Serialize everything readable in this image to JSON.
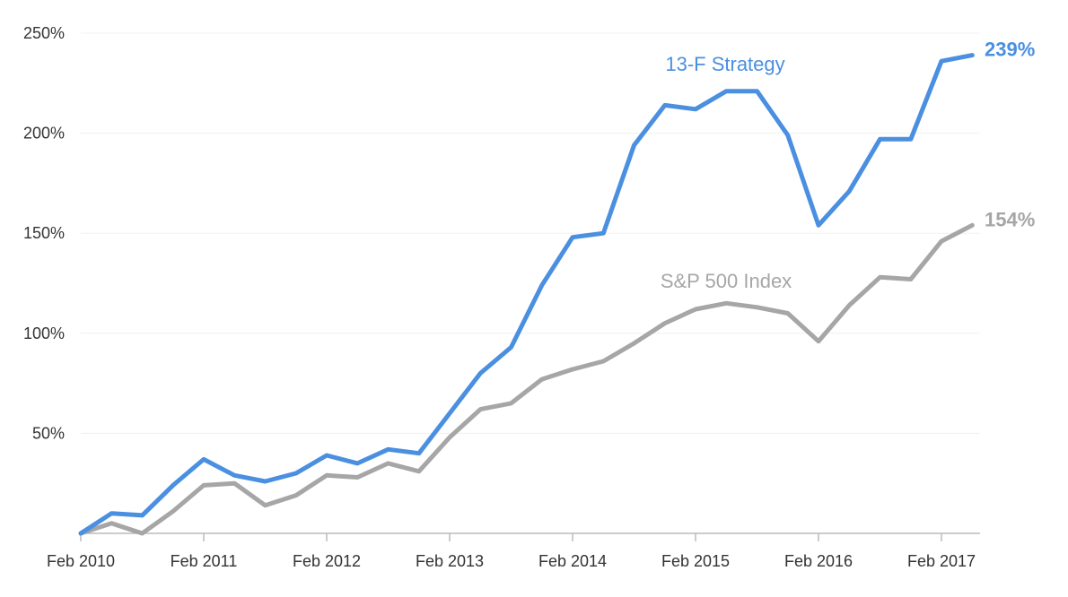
{
  "chart_data": {
    "type": "line",
    "title": "",
    "xlabel": "",
    "ylabel": "",
    "x_tick_labels": [
      "Feb 2010",
      "Feb 2011",
      "Feb 2012",
      "Feb 2013",
      "Feb 2014",
      "Feb 2015",
      "Feb 2016",
      "Feb 2017"
    ],
    "y_tick_labels": [
      "50%",
      "100%",
      "150%",
      "200%",
      "250%"
    ],
    "y_ticks": [
      50,
      100,
      150,
      200,
      250
    ],
    "ylim": [
      0,
      250
    ],
    "xlim_periods": [
      0,
      29.25
    ],
    "grid": "horizontal",
    "colors": {
      "strategy": "#4a8fe0",
      "index": "#a6a6a6",
      "grid": "#f0f0f0",
      "axis": "#bbbbbb"
    },
    "x_period": "quarter",
    "series": [
      {
        "name": "13-F Strategy",
        "end_label": "239%",
        "values": [
          0,
          10,
          9,
          24,
          37,
          29,
          26,
          30,
          39,
          35,
          42,
          40,
          60,
          80,
          93,
          124,
          148,
          150,
          194,
          214,
          212,
          221,
          221,
          199,
          154,
          171,
          197,
          197,
          236,
          239
        ]
      },
      {
        "name": "S&P 500 Index",
        "end_label": "154%",
        "values": [
          0,
          5,
          0,
          11,
          24,
          25,
          14,
          19,
          29,
          28,
          35,
          31,
          48,
          62,
          65,
          77,
          82,
          86,
          95,
          105,
          112,
          115,
          113,
          110,
          96,
          114,
          128,
          127,
          146,
          154
        ]
      }
    ]
  }
}
